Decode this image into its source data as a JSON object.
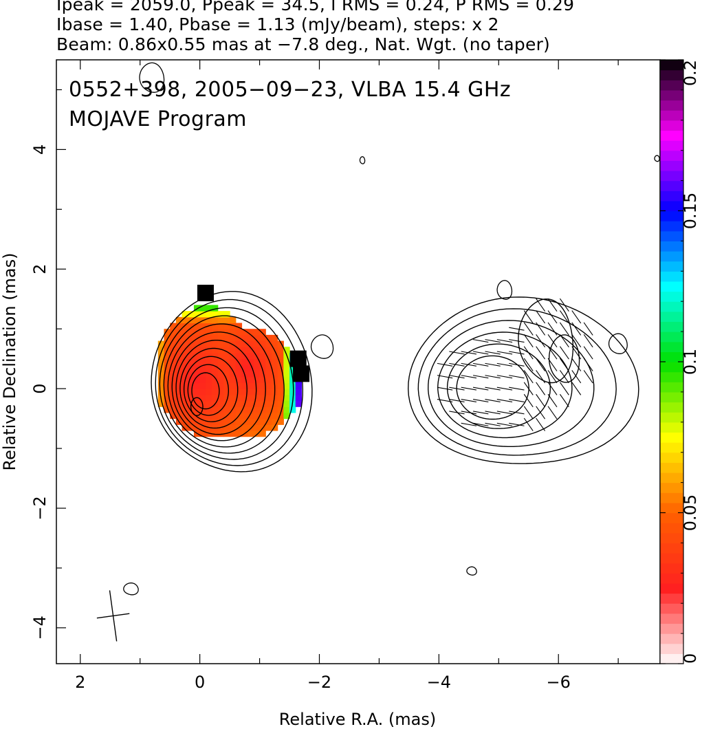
{
  "header": {
    "line1": "Ipeak = 2059.0, Ppeak = 34.5, I RMS = 0.24, P RMS = 0.29",
    "line2": "Ibase = 1.40, Pbase = 1.13 (mJy/beam), steps: x 2",
    "line3": "Beam: 0.86x0.55 mas at −7.8 deg., Nat. Wgt. (no taper)"
  },
  "chart_data": {
    "type": "heatmap",
    "title": "",
    "annotation_line1": "0552+398, 2005−09−23, VLBA 15.4 GHz",
    "annotation_line2": "MOJAVE Program",
    "xlabel": "Relative R.A. (mas)",
    "ylabel": "Relative Declination (mas)",
    "xlim": [
      2.4,
      -7.7
    ],
    "ylim": [
      -4.6,
      5.5
    ],
    "x_ticks": [
      2,
      0,
      -2,
      -4,
      -6
    ],
    "x_tick_labels": [
      "2",
      "0",
      "−2",
      "−4",
      "−6"
    ],
    "y_ticks": [
      -4,
      -2,
      0,
      2,
      4
    ],
    "y_tick_labels": [
      "−4",
      "−2",
      "0",
      "2",
      "4"
    ],
    "colorbar": {
      "range": [
        0,
        0.2
      ],
      "ticks": [
        0,
        0.05,
        0.1,
        0.15,
        0.2
      ],
      "tick_labels": [
        "0",
        "0.05",
        "0.1",
        "0.15",
        "0.2"
      ],
      "colors": [
        "#ffffff",
        "#ff2020",
        "#ff6000",
        "#ffff00",
        "#00e000",
        "#00ffff",
        "#0000ff",
        "#ff00ff",
        "#000000"
      ]
    },
    "panels": [
      {
        "name": "fractional polarization + total intensity",
        "center": [
          0,
          0
        ],
        "contour_levels_mJy": [
          1.4,
          2.8,
          5.6,
          11.2,
          22.4,
          44.8,
          89.6,
          179.2,
          358.4,
          716.8,
          1433.6
        ],
        "polarized_region": {
          "ra_range": [
            0.9,
            -1.7
          ],
          "dec_range": [
            -1.0,
            1.7
          ]
        }
      },
      {
        "name": "polarized intensity + EVPA",
        "center": [
          -4.6,
          0
        ],
        "contour_levels_mJy": [
          1.13,
          2.26,
          4.52,
          9.04,
          18.08,
          36.16
        ],
        "evpa_region": {
          "ra_range": [
            -4.0,
            -6.6
          ],
          "dec_range": [
            -0.8,
            1.4
          ]
        }
      }
    ],
    "beam": {
      "major_mas": 0.86,
      "minor_mas": 0.55,
      "pa_deg": -7.8,
      "center": [
        1.45,
        -3.8
      ]
    }
  }
}
